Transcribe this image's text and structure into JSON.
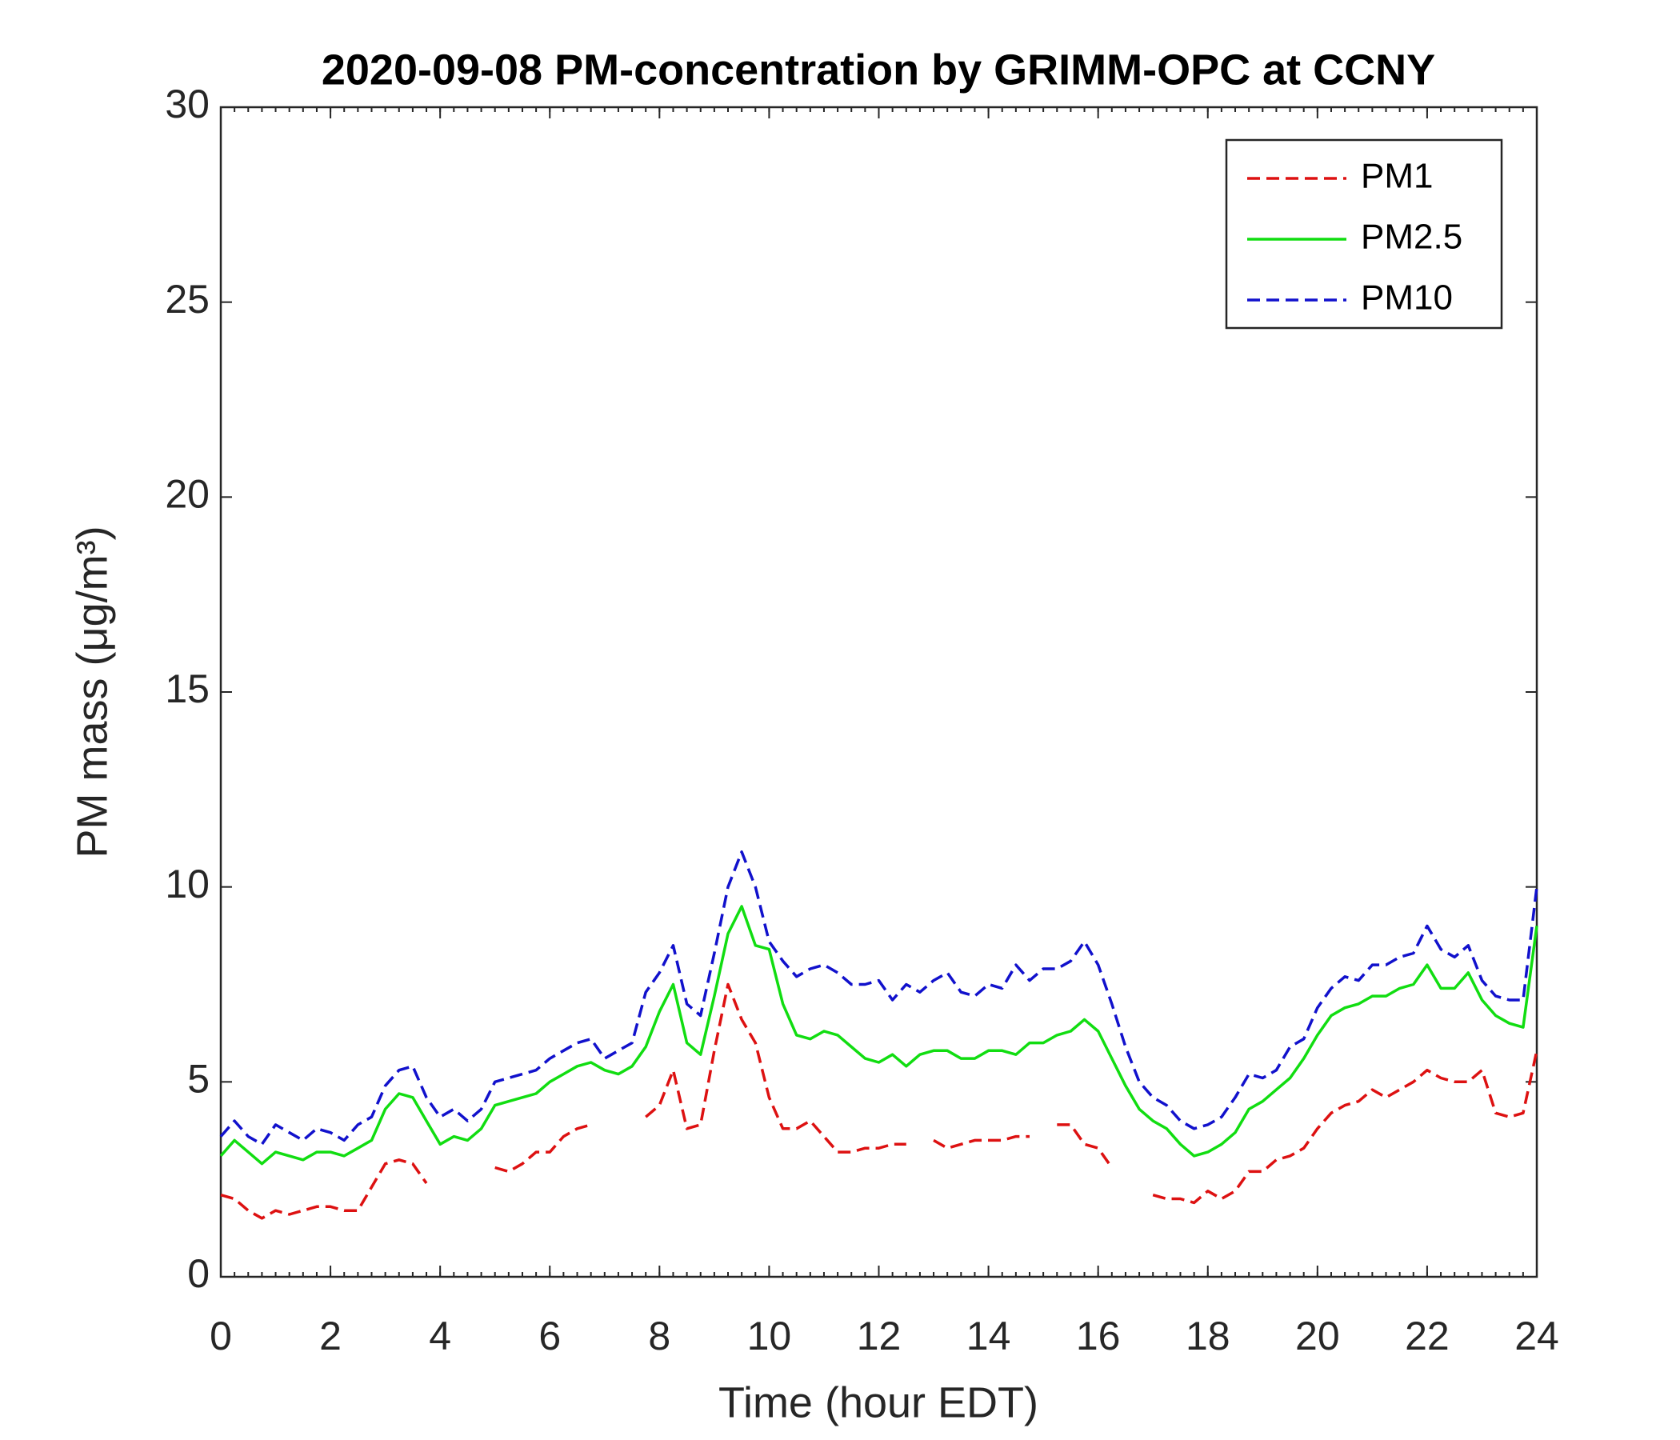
{
  "chart_data": {
    "type": "line",
    "title": "2020-09-08 PM-concentration by GRIMM-OPC at CCNY",
    "x_label": "Time (hour EDT)",
    "y_label": "PM mass (μg/m³)",
    "x": [
      0,
      0.25,
      0.5,
      0.75,
      1,
      1.25,
      1.5,
      1.75,
      2,
      2.25,
      2.5,
      2.75,
      3,
      3.25,
      3.5,
      3.75,
      4,
      4.25,
      4.5,
      4.75,
      5,
      5.25,
      5.5,
      5.75,
      6,
      6.25,
      6.5,
      6.75,
      7,
      7.25,
      7.5,
      7.75,
      8,
      8.25,
      8.5,
      8.75,
      9,
      9.25,
      9.5,
      9.75,
      10,
      10.25,
      10.5,
      10.75,
      11,
      11.25,
      11.5,
      11.75,
      12,
      12.25,
      12.5,
      12.75,
      13,
      13.25,
      13.5,
      13.75,
      14,
      14.25,
      14.5,
      14.75,
      15,
      15.25,
      15.5,
      15.75,
      16,
      16.25,
      16.5,
      16.75,
      17,
      17.25,
      17.5,
      17.75,
      18,
      18.25,
      18.5,
      18.75,
      19,
      19.25,
      19.5,
      19.75,
      20,
      20.25,
      20.5,
      20.75,
      21,
      21.25,
      21.5,
      21.75,
      22,
      22.25,
      22.5,
      22.75,
      23,
      23.25,
      23.5,
      23.75,
      24
    ],
    "series": [
      {
        "name": "PM1",
        "color": "#dd1111",
        "dash": true,
        "values": [
          2.1,
          2.0,
          1.7,
          1.5,
          1.7,
          1.6,
          1.7,
          1.8,
          1.8,
          1.7,
          1.7,
          2.3,
          2.9,
          3.0,
          2.9,
          2.4,
          null,
          null,
          null,
          null,
          2.8,
          2.7,
          2.9,
          3.2,
          3.2,
          3.6,
          3.8,
          3.9,
          null,
          null,
          null,
          4.1,
          4.4,
          5.3,
          3.8,
          3.9,
          5.8,
          7.5,
          6.6,
          6.0,
          4.6,
          3.8,
          3.8,
          4.0,
          3.6,
          3.2,
          3.2,
          3.3,
          3.3,
          3.4,
          3.4,
          null,
          3.5,
          3.3,
          3.4,
          3.5,
          3.5,
          3.5,
          3.6,
          3.6,
          null,
          3.9,
          3.9,
          3.4,
          3.3,
          2.8,
          null,
          null,
          2.1,
          2.0,
          2.0,
          1.9,
          2.2,
          2.0,
          2.2,
          2.7,
          2.7,
          3.0,
          3.1,
          3.3,
          3.8,
          4.2,
          4.4,
          4.5,
          4.8,
          4.6,
          4.8,
          5.0,
          5.3,
          5.1,
          5.0,
          5.0,
          5.3,
          4.2,
          4.1,
          4.2,
          5.8
        ]
      },
      {
        "name": "PM2.5",
        "color": "#11dd11",
        "dash": false,
        "values": [
          3.1,
          3.5,
          3.2,
          2.9,
          3.2,
          3.1,
          3.0,
          3.2,
          3.2,
          3.1,
          3.3,
          3.5,
          4.3,
          4.7,
          4.6,
          4.0,
          3.4,
          3.6,
          3.5,
          3.8,
          4.4,
          4.5,
          4.6,
          4.7,
          5.0,
          5.2,
          5.4,
          5.5,
          5.3,
          5.2,
          5.4,
          5.9,
          6.8,
          7.5,
          6.0,
          5.7,
          7.2,
          8.8,
          9.5,
          8.5,
          8.4,
          7.0,
          6.2,
          6.1,
          6.3,
          6.2,
          5.9,
          5.6,
          5.5,
          5.7,
          5.4,
          5.7,
          5.8,
          5.8,
          5.6,
          5.6,
          5.8,
          5.8,
          5.7,
          6.0,
          6.0,
          6.2,
          6.3,
          6.6,
          6.3,
          5.6,
          4.9,
          4.3,
          4.0,
          3.8,
          3.4,
          3.1,
          3.2,
          3.4,
          3.7,
          4.3,
          4.5,
          4.8,
          5.1,
          5.6,
          6.2,
          6.7,
          6.9,
          7.0,
          7.2,
          7.2,
          7.4,
          7.5,
          8.0,
          7.4,
          7.4,
          7.8,
          7.1,
          6.7,
          6.5,
          6.4,
          9.0
        ]
      },
      {
        "name": "PM10",
        "color": "#1111cc",
        "dash": true,
        "values": [
          3.6,
          4.0,
          3.6,
          3.4,
          3.9,
          3.7,
          3.5,
          3.8,
          3.7,
          3.5,
          3.9,
          4.1,
          4.9,
          5.3,
          5.4,
          4.6,
          4.1,
          4.3,
          4.0,
          4.3,
          5.0,
          5.1,
          5.2,
          5.3,
          5.6,
          5.8,
          6.0,
          6.1,
          5.6,
          5.8,
          6.0,
          7.3,
          7.8,
          8.5,
          7.0,
          6.7,
          8.3,
          10.0,
          10.9,
          10.0,
          8.6,
          8.1,
          7.7,
          7.9,
          8.0,
          7.8,
          7.5,
          7.5,
          7.6,
          7.1,
          7.5,
          7.3,
          7.6,
          7.8,
          7.3,
          7.2,
          7.5,
          7.4,
          8.0,
          7.6,
          7.9,
          7.9,
          8.1,
          8.6,
          8.0,
          7.0,
          5.9,
          5.0,
          4.6,
          4.4,
          4.0,
          3.8,
          3.9,
          4.1,
          4.6,
          5.2,
          5.1,
          5.3,
          5.9,
          6.1,
          6.9,
          7.4,
          7.7,
          7.6,
          8.0,
          8.0,
          8.2,
          8.3,
          9.0,
          8.4,
          8.2,
          8.5,
          7.6,
          7.2,
          7.1,
          7.1,
          10.0
        ]
      }
    ],
    "xlim": [
      0,
      24
    ],
    "xticks": [
      0,
      2,
      4,
      6,
      8,
      10,
      12,
      14,
      16,
      18,
      20,
      22,
      24
    ],
    "ylim": [
      0,
      30
    ],
    "yticks": [
      0,
      5,
      10,
      15,
      20,
      25,
      30
    ],
    "legend": "upper right",
    "grid": false
  }
}
